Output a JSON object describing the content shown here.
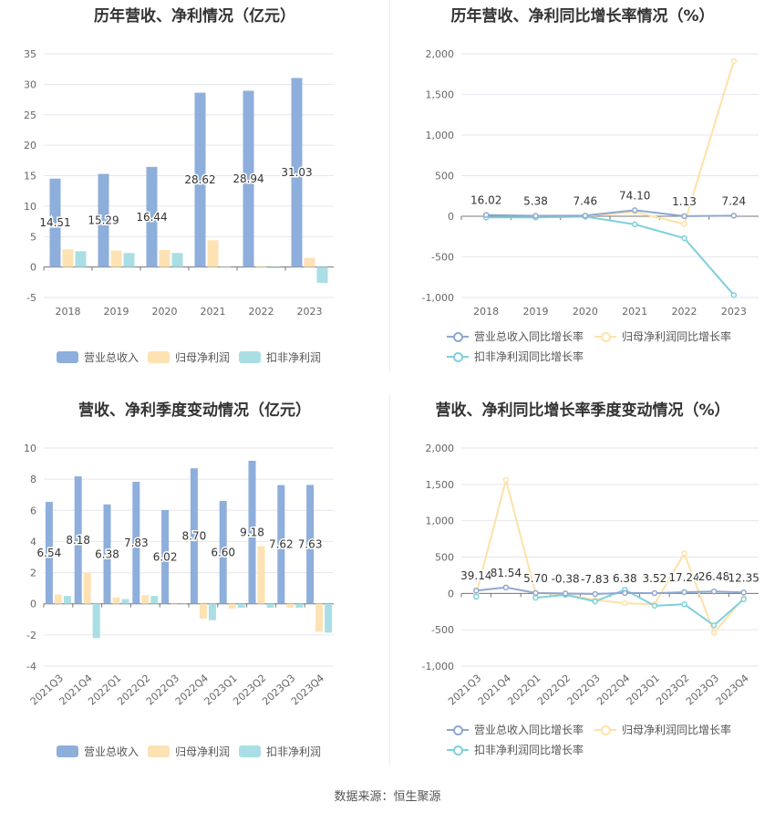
{
  "source": "数据来源：恒生聚源",
  "colors": {
    "revenue": "#8eaedb",
    "net_profit": "#fde2b3",
    "deducted_profit": "#a9dfe4",
    "rev_line": "#8fa8d0",
    "np_line": "#fde2a8",
    "dp_line": "#7fd0dc"
  },
  "chart_data": [
    {
      "type": "bar",
      "title": "历年营收、净利情况（亿元）",
      "categories": [
        "2018",
        "2019",
        "2020",
        "2021",
        "2022",
        "2023"
      ],
      "ylim": [
        -5,
        35
      ],
      "yticks": [
        "35",
        "30",
        "25",
        "20",
        "15",
        "10",
        "5",
        "0",
        "-5"
      ],
      "series": [
        {
          "name": "营业总收入",
          "values": [
            14.51,
            15.29,
            16.44,
            28.62,
            28.94,
            31.03
          ],
          "labels": [
            "14.51",
            "15.29",
            "16.44",
            "28.62",
            "28.94",
            "31.03"
          ]
        },
        {
          "name": "归母净利润",
          "values": [
            2.9,
            2.7,
            2.8,
            4.4,
            0.1,
            1.5
          ]
        },
        {
          "name": "扣非净利润",
          "values": [
            2.6,
            2.3,
            2.3,
            0.0,
            -0.2,
            -2.6
          ]
        }
      ]
    },
    {
      "type": "line",
      "title": "历年营收、净利同比增长率情况（%）",
      "categories": [
        "2018",
        "2019",
        "2020",
        "2021",
        "2022",
        "2023"
      ],
      "ylim": [
        -1000,
        2000
      ],
      "yticks": [
        "2,000",
        "1,500",
        "1,000",
        "500",
        "0",
        "-500",
        "-1,000"
      ],
      "series": [
        {
          "name": "营业总收入同比增长率",
          "values": [
            16.02,
            5.38,
            7.46,
            74.1,
            1.13,
            7.24
          ],
          "labels": [
            "16.02",
            "5.38",
            "7.46",
            "74.10",
            "1.13",
            "7.24"
          ]
        },
        {
          "name": "归母净利润同比增长率",
          "values": [
            null,
            null,
            2,
            55,
            -95,
            1910
          ]
        },
        {
          "name": "扣非净利润同比增长率",
          "values": [
            -15,
            -15,
            -5,
            -100,
            -270,
            -970
          ]
        }
      ]
    },
    {
      "type": "bar",
      "title": "营收、净利季度变动情况（亿元）",
      "categories": [
        "2021Q3",
        "2021Q4",
        "2022Q1",
        "2022Q2",
        "2022Q3",
        "2022Q4",
        "2023Q1",
        "2023Q2",
        "2023Q3",
        "2023Q4"
      ],
      "ylim": [
        -4,
        10
      ],
      "yticks": [
        "10",
        "8",
        "6",
        "4",
        "2",
        "0",
        "-2",
        "-4"
      ],
      "series": [
        {
          "name": "营业总收入",
          "values": [
            6.54,
            8.18,
            6.38,
            7.83,
            6.02,
            8.7,
            6.6,
            9.18,
            7.62,
            7.63
          ],
          "labels": [
            "6.54",
            "8.18",
            "6.38",
            "7.83",
            "6.02",
            "8.70",
            "6.60",
            "9.18",
            "7.62",
            "7.63"
          ]
        },
        {
          "name": "归母净利润",
          "values": [
            0.6,
            2.0,
            0.4,
            0.55,
            0.0,
            -0.95,
            -0.3,
            3.7,
            -0.25,
            -1.8
          ]
        },
        {
          "name": "扣非净利润",
          "values": [
            0.5,
            -2.2,
            0.3,
            0.5,
            0.0,
            -1.05,
            -0.25,
            -0.25,
            -0.25,
            -1.85
          ]
        }
      ]
    },
    {
      "type": "line",
      "title": "营收、净利同比增长率季度变动情况（%）",
      "categories": [
        "2021Q3",
        "2021Q4",
        "2022Q1",
        "2022Q2",
        "2022Q3",
        "2022Q4",
        "2023Q1",
        "2023Q2",
        "2023Q3",
        "2023Q4"
      ],
      "ylim": [
        -1000,
        2000
      ],
      "yticks": [
        "2,000",
        "1,500",
        "1,000",
        "500",
        "0",
        "-500",
        "-1,000"
      ],
      "series": [
        {
          "name": "营业总收入同比增长率",
          "values": [
            39.14,
            81.54,
            5.7,
            -0.38,
            -7.83,
            6.38,
            3.52,
            17.24,
            26.48,
            12.35
          ],
          "labels": [
            "39.14",
            "81.54",
            "5.70",
            "-0.38",
            "-7.83",
            "6.38",
            "3.52",
            "17.24",
            "26.48",
            "12.35"
          ]
        },
        {
          "name": "归母净利润同比增长率",
          "values": [
            -10,
            1560,
            0,
            -10,
            -90,
            -135,
            -150,
            550,
            -540,
            -60
          ]
        },
        {
          "name": "扣非净利润同比增长率",
          "values": [
            -45,
            null,
            -60,
            -20,
            -110,
            50,
            -170,
            -150,
            -440,
            -80
          ]
        }
      ]
    }
  ]
}
